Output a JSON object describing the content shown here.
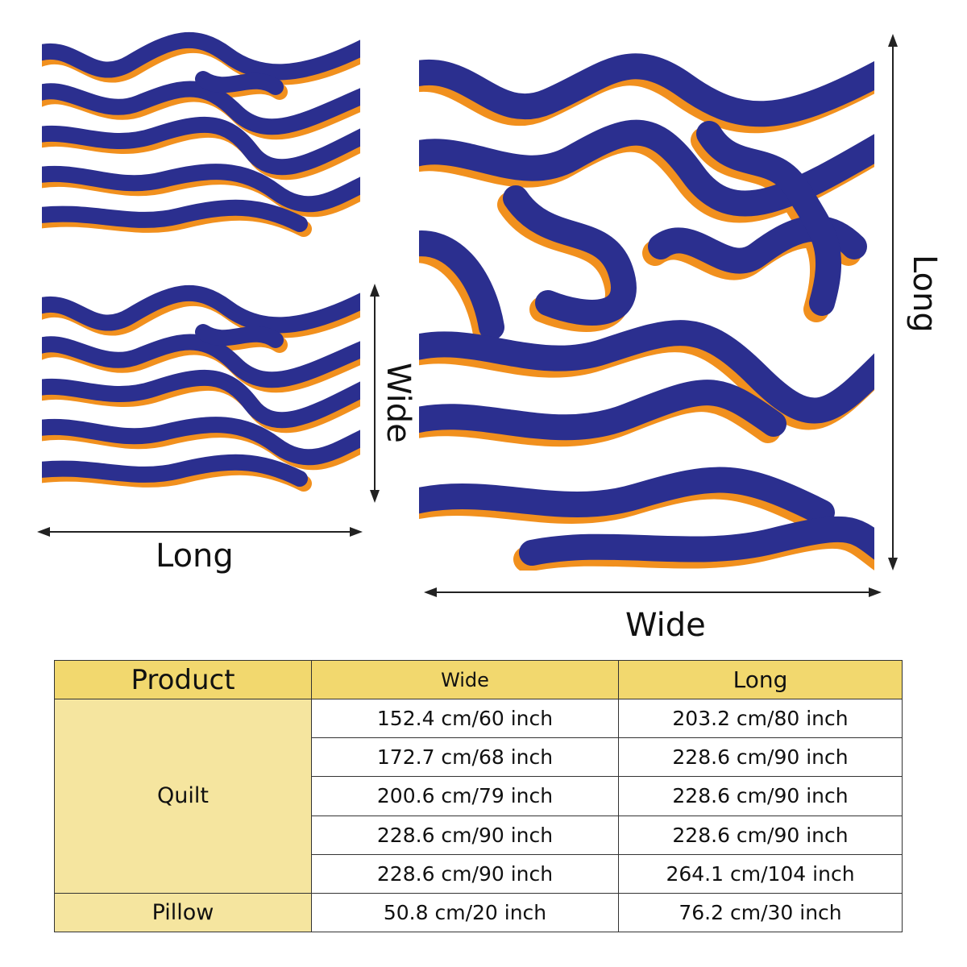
{
  "labels": {
    "pillow_long": "Long",
    "pillow_wide": "Wide",
    "quilt_wide": "Wide",
    "quilt_long": "Long"
  },
  "colors": {
    "pattern_blue": "#2b2f8f",
    "pattern_orange": "#f1901e",
    "pattern_bg": "#ffffff",
    "header_fill": "#f2d86e",
    "product_fill": "#f5e59f"
  },
  "table": {
    "headers": {
      "product": "Product",
      "wide": "Wide",
      "long": "Long"
    },
    "rows": [
      {
        "product": "Quilt",
        "wide": "152.4 cm/60 inch",
        "long": "203.2 cm/80 inch"
      },
      {
        "product": "Quilt",
        "wide": "172.7 cm/68 inch",
        "long": "228.6 cm/90 inch"
      },
      {
        "product": "Quilt",
        "wide": "200.6 cm/79 inch",
        "long": "228.6 cm/90 inch"
      },
      {
        "product": "Quilt",
        "wide": "228.6 cm/90 inch",
        "long": "228.6 cm/90 inch"
      },
      {
        "product": "Quilt",
        "wide": "228.6 cm/90 inch",
        "long": "264.1 cm/104 inch"
      },
      {
        "product": "Pillow",
        "wide": "50.8 cm/20 inch",
        "long": "76.2 cm/30 inch"
      }
    ]
  }
}
